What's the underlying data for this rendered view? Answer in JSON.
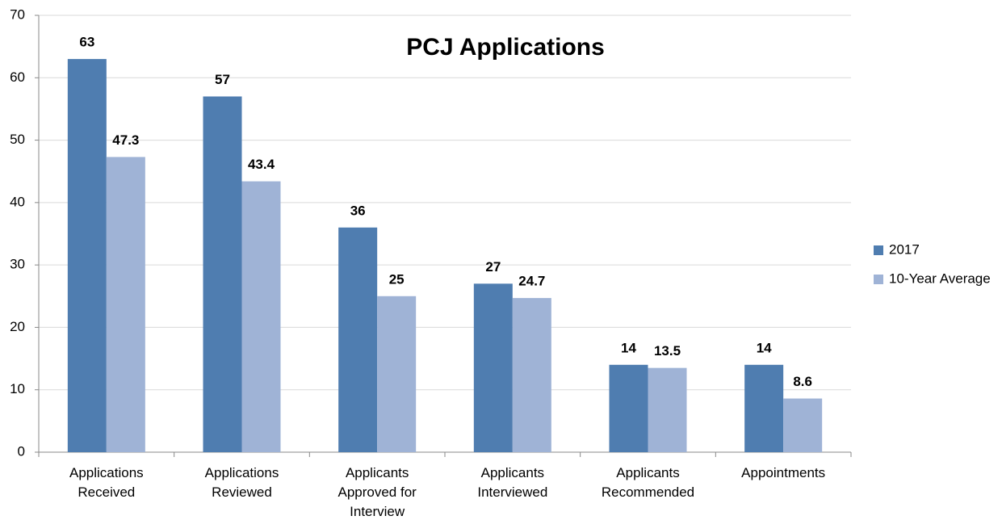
{
  "chart_data": {
    "type": "bar",
    "title": "PCJ Applications",
    "categories": [
      "Applications\nReceived",
      "Applications\nReviewed",
      "Applicants\nApproved for\nInterview",
      "Applicants\nInterviewed",
      "Applicants\nRecommended",
      "Appointments"
    ],
    "series": [
      {
        "name": "2017",
        "color": "#4f7db0",
        "values": [
          63,
          57,
          36,
          27,
          14,
          14
        ]
      },
      {
        "name": "10-Year Average",
        "color": "#9fb3d6",
        "values": [
          47.3,
          43.4,
          25,
          24.7,
          13.5,
          8.6
        ]
      }
    ],
    "ylim": [
      0,
      70
    ],
    "yticks": [
      0,
      10,
      20,
      30,
      40,
      50,
      60,
      70
    ],
    "grid": true,
    "legend": "right"
  }
}
